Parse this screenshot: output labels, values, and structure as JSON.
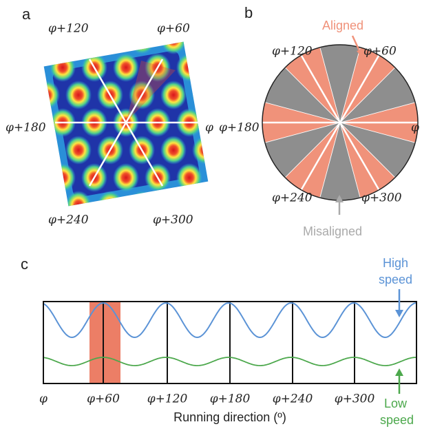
{
  "panel_a": {
    "label": "a",
    "directions": [
      "φ+120",
      "φ+60",
      "φ+180",
      "φ",
      "φ+240",
      "φ+300"
    ]
  },
  "panel_b": {
    "label": "b",
    "aligned": "Aligned",
    "misaligned": "Misaligned",
    "directions": [
      "φ+120",
      "φ+60",
      "φ+180",
      "φ",
      "φ+240",
      "φ+300"
    ]
  },
  "panel_c": {
    "label": "c",
    "x_labels": [
      "φ",
      "φ+60",
      "φ+120",
      "φ+180",
      "φ+240",
      "φ+300"
    ],
    "x_axis_label": "Running direction (º)",
    "high_speed": [
      "High",
      "speed"
    ],
    "low_speed": [
      "Low",
      "speed"
    ]
  }
}
